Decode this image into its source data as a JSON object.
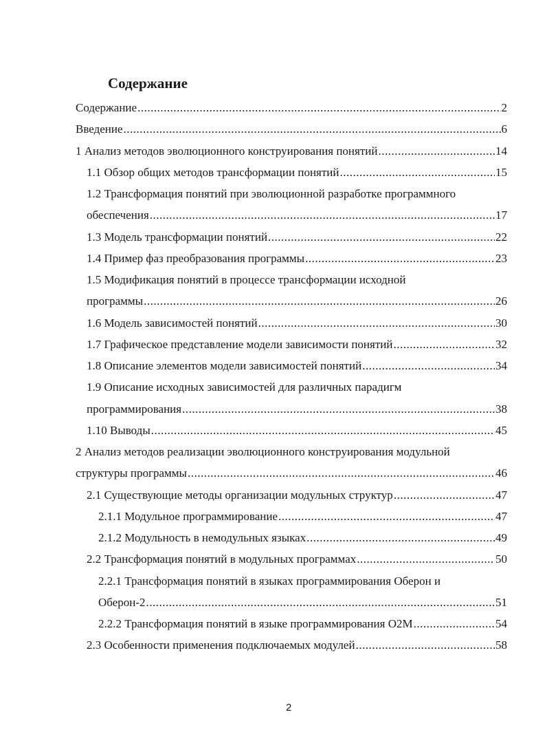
{
  "title": "Содержание",
  "entries": [
    {
      "level": 0,
      "text": "Содержание",
      "page": "2"
    },
    {
      "level": 0,
      "text": "Введение",
      "page": "6"
    },
    {
      "level": 0,
      "text": "1  Анализ методов эволюционного конструирования понятий",
      "page": "14"
    },
    {
      "level": 1,
      "text": "1.1 Обзор общих методов трансформации понятий",
      "page": "15"
    },
    {
      "level": 1,
      "text": "1.2 Трансформация понятий при эволюционной разработке программного",
      "cont": "обеспечения",
      "page": "17"
    },
    {
      "level": 1,
      "text": "1.3 Модель трансформации понятий",
      "page": "22"
    },
    {
      "level": 1,
      "text": "1.4 Пример фаз преобразования программы",
      "page": "23"
    },
    {
      "level": 1,
      "text": "1.5 Модификация понятий в процессе трансформации исходной",
      "cont": "программы",
      "page": "26"
    },
    {
      "level": 1,
      "text": "1.6 Модель зависимостей понятий",
      "page": "30"
    },
    {
      "level": 1,
      "text": "1.7 Графическое представление модели зависимости понятий",
      "page": "32"
    },
    {
      "level": 1,
      "text": "1.8 Описание элементов модели зависимостей понятий",
      "page": "34"
    },
    {
      "level": 1,
      "text": "1.9 Описание исходных зависимостей для различных парадигм",
      "cont": "программирования",
      "page": "38"
    },
    {
      "level": 1,
      "text": "1.10 Выводы",
      "page": "45"
    },
    {
      "level": 0,
      "text": "2  Анализ методов реализации эволюционного конструирования модульной",
      "cont": "структуры программы",
      "page": "46"
    },
    {
      "level": 1,
      "text": "2.1 Существующие методы организации модульных структур",
      "page": "47"
    },
    {
      "level": 2,
      "text": "2.1.1 Модульное программирование",
      "page": "47"
    },
    {
      "level": 2,
      "text": "2.1.2 Модульность в немодульных языках",
      "page": "49"
    },
    {
      "level": 1,
      "text": "2.2 Трансформация понятий в модульных программах",
      "page": "50"
    },
    {
      "level": 2,
      "text": "2.2.1 Трансформация понятий в языках программирования  Оберон и",
      "cont": "Оберон-2",
      "page": "51"
    },
    {
      "level": 2,
      "text": "2.2.2 Трансформация понятий в языке программирования O2M",
      "page": "54"
    },
    {
      "level": 1,
      "text": "2.3 Особенности применения подключаемых модулей",
      "page": "58"
    }
  ],
  "page_number": "2"
}
